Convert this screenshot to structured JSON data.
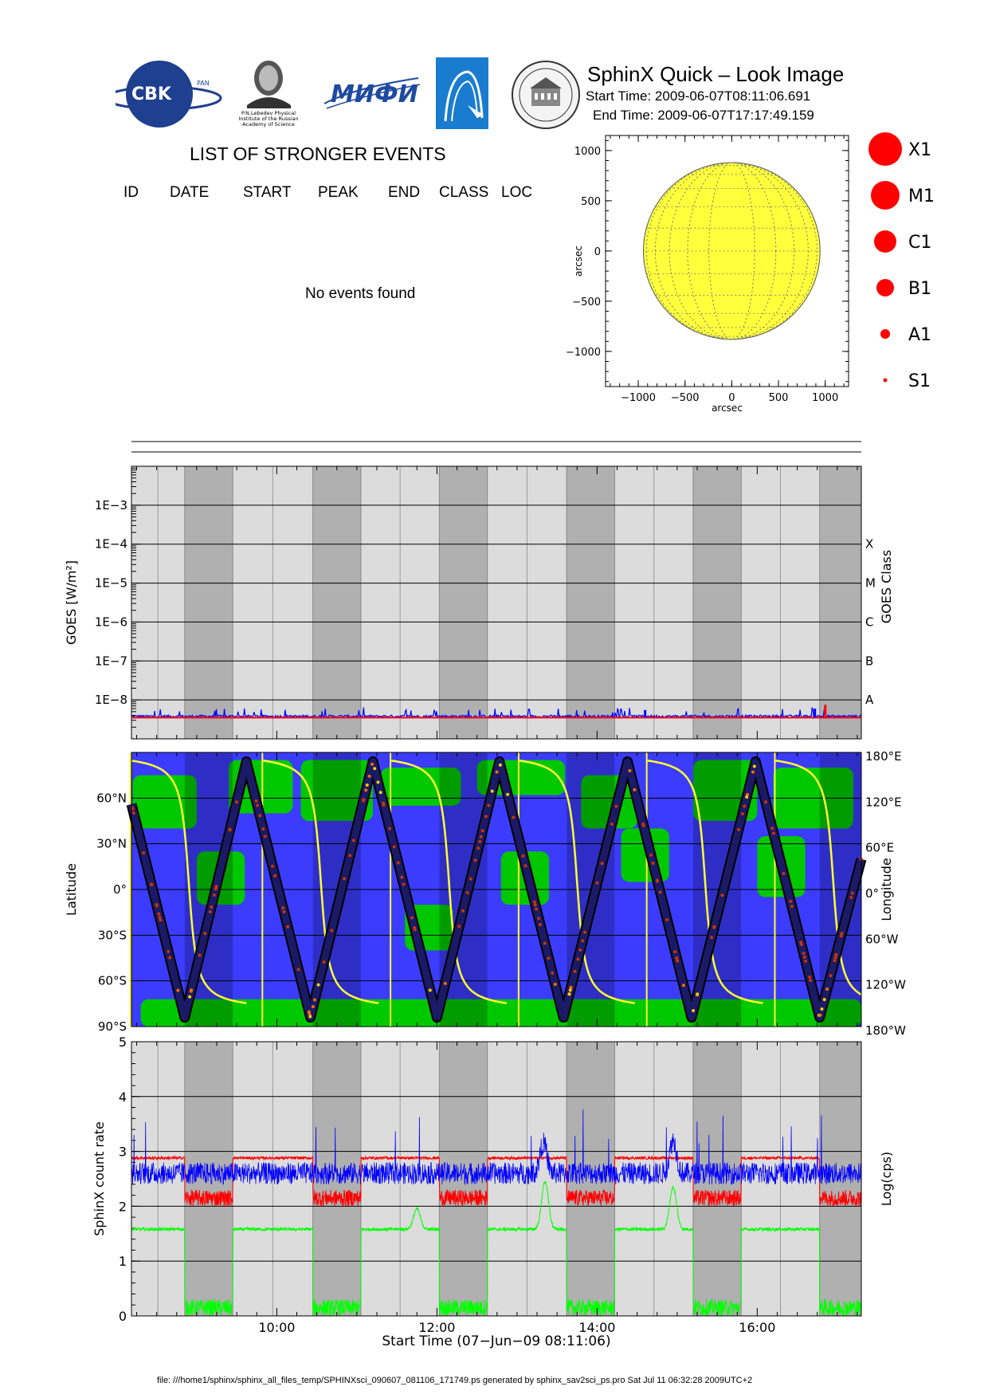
{
  "header": {
    "title": "SphinX Quick – Look Image",
    "start_time": "Start Time: 2009-06-07T08:11:06.691",
    "end_time": "End Time: 2009-06-07T17:17:49.159",
    "logos": {
      "cbk": "CBK",
      "cbk_sub": "PAN",
      "lebedev": [
        "P.N.Lebedev Physical",
        "Institute of the Russian",
        "Academy of Science"
      ],
      "mifi": "МИФИ"
    }
  },
  "events": {
    "title": "LIST OF STRONGER EVENTS",
    "columns": [
      "ID",
      "DATE",
      "START",
      "PEAK",
      "END",
      "CLASS",
      "LOC"
    ],
    "message": "No events found"
  },
  "legend": {
    "classes": [
      "X1",
      "M1",
      "C1",
      "B1",
      "A1",
      "S1"
    ],
    "color": "#ff0000"
  },
  "colors": {
    "sun": "#ffff3c",
    "land": "#00c800",
    "ocean": "#3c3cff",
    "night_band": "#b0b0b0",
    "day_band": "#dcdcdc",
    "goes_blue": "#0000ff",
    "goes_red": "#ff0000",
    "orbit": "#1a1a66"
  },
  "footer": "file: ///home1/sphinx/sphinx_all_files_temp/SPHINXsci_090607_081106_171749.ps generated by sphinx_sav2sci_ps.pro Sat Jul 11 06:32:28 2009UTC+2",
  "chart_data": [
    {
      "type": "scatter",
      "panel": "solar_disk",
      "xlabel": "arcsec",
      "ylabel": "arcsec",
      "xlim": [
        -1350,
        1250
      ],
      "ylim": [
        -1350,
        1150
      ],
      "xticks": [
        -1000,
        -500,
        0,
        500,
        1000
      ],
      "yticks": [
        -1000,
        -500,
        0,
        500,
        1000
      ],
      "xtick_labels": [
        "−1000",
        "−500",
        "0",
        "500",
        "1000"
      ],
      "ytick_labels": [
        "−1000",
        "−500",
        "0",
        "500",
        "1000"
      ],
      "disk_radius": 945,
      "points": []
    },
    {
      "type": "line",
      "panel": "goes",
      "ylabel": "GOES [W/m²]",
      "ylabel_right": "GOES Class",
      "log_scale": true,
      "ylim": [
        1e-09,
        0.01
      ],
      "ytick_labels": [
        "1E−3",
        "1E−4",
        "1E−5",
        "1E−6",
        "1E−7",
        "1E−8"
      ],
      "yticks": [
        -3,
        -4,
        -5,
        -6,
        -7,
        -8
      ],
      "class_labels": [
        "X",
        "M",
        "C",
        "B",
        "A"
      ],
      "class_levels": [
        -4,
        -5,
        -6,
        -7,
        -8
      ],
      "series": [
        {
          "name": "",
          "color": "#0000ff",
          "level": 3.8e-09
        },
        {
          "name": "",
          "color": "#ff0000",
          "level": 3.5e-09
        }
      ],
      "spikes": [
        {
          "x": 16.85,
          "value": 7.5e-09,
          "color": "#ff0000"
        },
        {
          "x": 16.72,
          "value": 6e-09,
          "color": "#0000ff"
        },
        {
          "x": 14.6,
          "value": 5.5e-09,
          "color": "#0000ff"
        }
      ]
    },
    {
      "type": "line",
      "panel": "map",
      "ylabel": "Latitude",
      "ylabel_right": "Longitude",
      "ylim": [
        -90,
        90
      ],
      "lat_ticks": [
        60,
        30,
        0,
        -30,
        -60,
        -90
      ],
      "lat_labels": [
        "60°N",
        "30°N",
        "0°",
        "30°S",
        "60°S",
        "90°S"
      ],
      "lon_labels": [
        "180°E",
        "120°E",
        "60°E",
        "0°",
        "60°W",
        "120°W",
        "180°W"
      ],
      "orbit_vertices": [
        {
          "t": 8.185,
          "lat": 56
        },
        {
          "t": 8.85,
          "lat": -84
        },
        {
          "t": 9.62,
          "lat": 84
        },
        {
          "t": 10.42,
          "lat": -84
        },
        {
          "t": 11.2,
          "lat": 84
        },
        {
          "t": 12.0,
          "lat": -84
        },
        {
          "t": 12.78,
          "lat": 84
        },
        {
          "t": 13.58,
          "lat": -84
        },
        {
          "t": 14.38,
          "lat": 84
        },
        {
          "t": 15.18,
          "lat": -84
        },
        {
          "t": 15.98,
          "lat": 84
        },
        {
          "t": 16.78,
          "lat": -84
        },
        {
          "t": 17.3,
          "lat": 20
        }
      ],
      "day_night_transitions": [
        8.9,
        10.2,
        11.05,
        12.38,
        13.45,
        14.45,
        15.08,
        16.35
      ]
    },
    {
      "type": "line",
      "panel": "count_rate",
      "xlabel": "Start Time (07−Jun−09 08:11:06)",
      "ylabel": "SphinX count rate",
      "ylabel_right": "Log(cps)",
      "xlim": [
        8.185,
        17.3
      ],
      "ylim": [
        0,
        5
      ],
      "yticks": [
        0,
        1,
        2,
        3,
        4,
        5
      ],
      "xticks": [
        10,
        12,
        14,
        16
      ],
      "xtick_labels": [
        "10:00",
        "12:00",
        "14:00",
        "16:00"
      ],
      "night_intervals": [
        [
          8.85,
          9.45
        ],
        [
          10.45,
          11.05
        ],
        [
          12.03,
          12.63
        ],
        [
          13.62,
          14.22
        ],
        [
          15.2,
          15.8
        ],
        [
          16.78,
          17.3
        ]
      ],
      "series": [
        {
          "name": "",
          "color": "#ff0000",
          "day_level": 2.88,
          "night_level": 2.15
        },
        {
          "name": "",
          "color": "#0000ff",
          "day_level": 2.6,
          "night_level": 2.6
        },
        {
          "name": "",
          "color": "#00ff00",
          "day_level": 1.58,
          "night_level": 0.15
        }
      ],
      "bumps": [
        {
          "series": 2,
          "t": 13.35,
          "value": 2.45
        },
        {
          "series": 2,
          "t": 14.95,
          "value": 2.35
        },
        {
          "series": 2,
          "t": 11.75,
          "value": 1.95
        },
        {
          "series": 1,
          "t": 13.33,
          "value": 3.15
        },
        {
          "series": 1,
          "t": 14.95,
          "value": 3.2
        }
      ]
    }
  ]
}
